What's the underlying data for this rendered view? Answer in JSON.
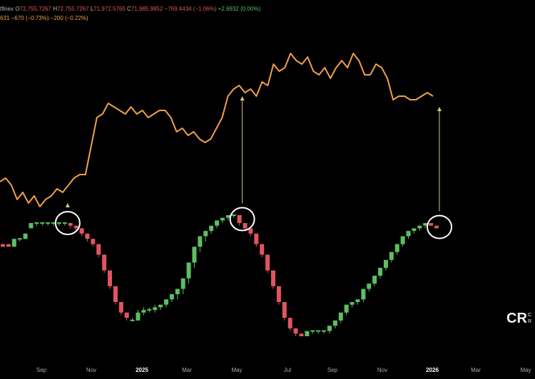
{
  "header": {
    "row1": {
      "name": "tfinex",
      "o_label": "O",
      "o_val": "72,755.7267",
      "h_label": "H",
      "h_val": "72,755.7267",
      "l_label": "L",
      "l_val": "71,972.5765",
      "c_label": "C",
      "c_val": "71,985.9852",
      "change": "−769.4434 (−1.06%)",
      "extra": "+2.6932 (0.00%)"
    },
    "row2": {
      "value": "631",
      "change1": "−670 (−0.73%)",
      "change2": "−200 (−0.22%)"
    }
  },
  "logo": {
    "mark": "CR",
    "text_line1": "C",
    "text_line2": "R"
  },
  "colors": {
    "background": "#000000",
    "up": "#5cbf63",
    "down": "#e0555e",
    "line": "#f0a04a",
    "annotation": "#d4c48a"
  },
  "chart_data": [
    {
      "type": "line",
      "title": "",
      "series": [
        {
          "values": [
            62,
            63,
            61,
            57,
            59,
            56,
            58,
            55,
            57,
            58,
            60,
            59,
            61,
            63,
            64,
            64,
            72,
            80,
            81,
            84,
            83,
            82,
            81,
            83,
            81,
            82,
            80,
            81,
            82,
            82,
            80,
            76,
            77,
            75,
            76,
            74,
            73,
            74,
            77,
            80,
            86,
            88,
            89,
            87,
            88,
            86,
            90,
            89,
            95,
            93,
            94,
            98,
            96,
            95,
            97,
            93,
            92,
            94,
            91,
            94,
            96,
            94,
            98,
            96,
            92,
            92,
            95,
            94,
            91,
            85,
            86,
            86,
            85,
            85,
            86,
            87,
            86
          ]
        }
      ]
    },
    {
      "type": "candlestick",
      "title": "",
      "x_ticks": [
        "Sep",
        "Nov",
        "2025",
        "Mar",
        "May",
        "Jul",
        "Sep",
        "Nov",
        "2026",
        "Mar",
        "May"
      ],
      "candles": [
        [
          57.5,
          57.5,
          57,
          57
        ],
        [
          57.5,
          57.5,
          57,
          57
        ],
        [
          57,
          58.5,
          57,
          58.5
        ],
        [
          58.5,
          58.5,
          58,
          58.5
        ],
        [
          58.5,
          59.5,
          58.5,
          59.5
        ],
        [
          60.5,
          61.5,
          60.5,
          61.5
        ],
        [
          61.5,
          61.5,
          61,
          61.5
        ],
        [
          61.5,
          61.5,
          61,
          61.5
        ],
        [
          61.5,
          61.5,
          61,
          61.5
        ],
        [
          61.5,
          61.5,
          61,
          61.5
        ],
        [
          61.5,
          61.5,
          61,
          61.5
        ],
        [
          61.5,
          61.5,
          61,
          61.5
        ],
        [
          61.5,
          61.5,
          60.5,
          61
        ],
        [
          61,
          61,
          60,
          60.5
        ],
        [
          60.5,
          60.5,
          59,
          59.5
        ],
        [
          59.5,
          59.5,
          58,
          58.5
        ],
        [
          58.5,
          58.5,
          57,
          57.5
        ],
        [
          57.5,
          57.5,
          55,
          55.5
        ],
        [
          55.5,
          55.5,
          52,
          52.5
        ],
        [
          52.5,
          52.5,
          49,
          49.5
        ],
        [
          49.5,
          49.5,
          46,
          46.5
        ],
        [
          46.5,
          46.5,
          44,
          44.5
        ],
        [
          44.5,
          44.5,
          43,
          43.5
        ],
        [
          43,
          43.5,
          43,
          43
        ],
        [
          43,
          45,
          43,
          44.5
        ],
        [
          44.5,
          45.5,
          44,
          45
        ],
        [
          45,
          45.5,
          44.5,
          45
        ],
        [
          45,
          46,
          44.5,
          45.5
        ],
        [
          45.5,
          46,
          45,
          46
        ],
        [
          46,
          47,
          45.5,
          47
        ],
        [
          47,
          48,
          46.5,
          48
        ],
        [
          48,
          49,
          47,
          49
        ],
        [
          49,
          51,
          48,
          51
        ],
        [
          51,
          54,
          50,
          54
        ],
        [
          54,
          57,
          53,
          57
        ],
        [
          57,
          59,
          56,
          59
        ],
        [
          59,
          60,
          58,
          60
        ],
        [
          60,
          61,
          59.5,
          61
        ],
        [
          61,
          62,
          60.5,
          62
        ],
        [
          62,
          62.5,
          61.5,
          62.5
        ],
        [
          62.5,
          63,
          62,
          63
        ],
        [
          63,
          63,
          62.5,
          63
        ],
        [
          63,
          63,
          61,
          61.5
        ],
        [
          61.5,
          61.5,
          60,
          60.5
        ],
        [
          60.5,
          60.5,
          59,
          59.5
        ],
        [
          59.5,
          59.5,
          57,
          57.5
        ],
        [
          57.5,
          57.5,
          55,
          55.5
        ],
        [
          55.5,
          55.5,
          52,
          52.5
        ],
        [
          52.5,
          52.5,
          49,
          49.5
        ],
        [
          49.5,
          49.5,
          46,
          46.5
        ],
        [
          46.5,
          46.5,
          43,
          43.5
        ],
        [
          43.5,
          43.5,
          41,
          41.5
        ],
        [
          41.5,
          41.5,
          40,
          40.5
        ],
        [
          40.5,
          40.5,
          40,
          40
        ],
        [
          40,
          41,
          40,
          41
        ],
        [
          41,
          41,
          40.5,
          41
        ],
        [
          41,
          41,
          40.5,
          41
        ],
        [
          41,
          41,
          40.5,
          41
        ],
        [
          41,
          42,
          40.5,
          42
        ],
        [
          42,
          43,
          41.5,
          43
        ],
        [
          43,
          44.5,
          42.5,
          44.5
        ],
        [
          44.5,
          46,
          44,
          46
        ],
        [
          46,
          46.5,
          45.5,
          46.5
        ],
        [
          46.5,
          47,
          46,
          47
        ],
        [
          47,
          49,
          46.5,
          49
        ],
        [
          49,
          50,
          48.5,
          50
        ],
        [
          50,
          51.5,
          49.5,
          51.5
        ],
        [
          51.5,
          53,
          51,
          53
        ],
        [
          53,
          54.5,
          52.5,
          54.5
        ],
        [
          54.5,
          56,
          54,
          56
        ],
        [
          56,
          57.5,
          55.5,
          57.5
        ],
        [
          57.5,
          59,
          57,
          59
        ],
        [
          59,
          60,
          58.5,
          60
        ],
        [
          60,
          60.5,
          59.5,
          60.5
        ],
        [
          60.5,
          61,
          60,
          61
        ],
        [
          61,
          61.5,
          60.5,
          61.5
        ],
        [
          61.5,
          61.5,
          61,
          61
        ],
        [
          61,
          61,
          60.5,
          60.5
        ]
      ]
    }
  ]
}
